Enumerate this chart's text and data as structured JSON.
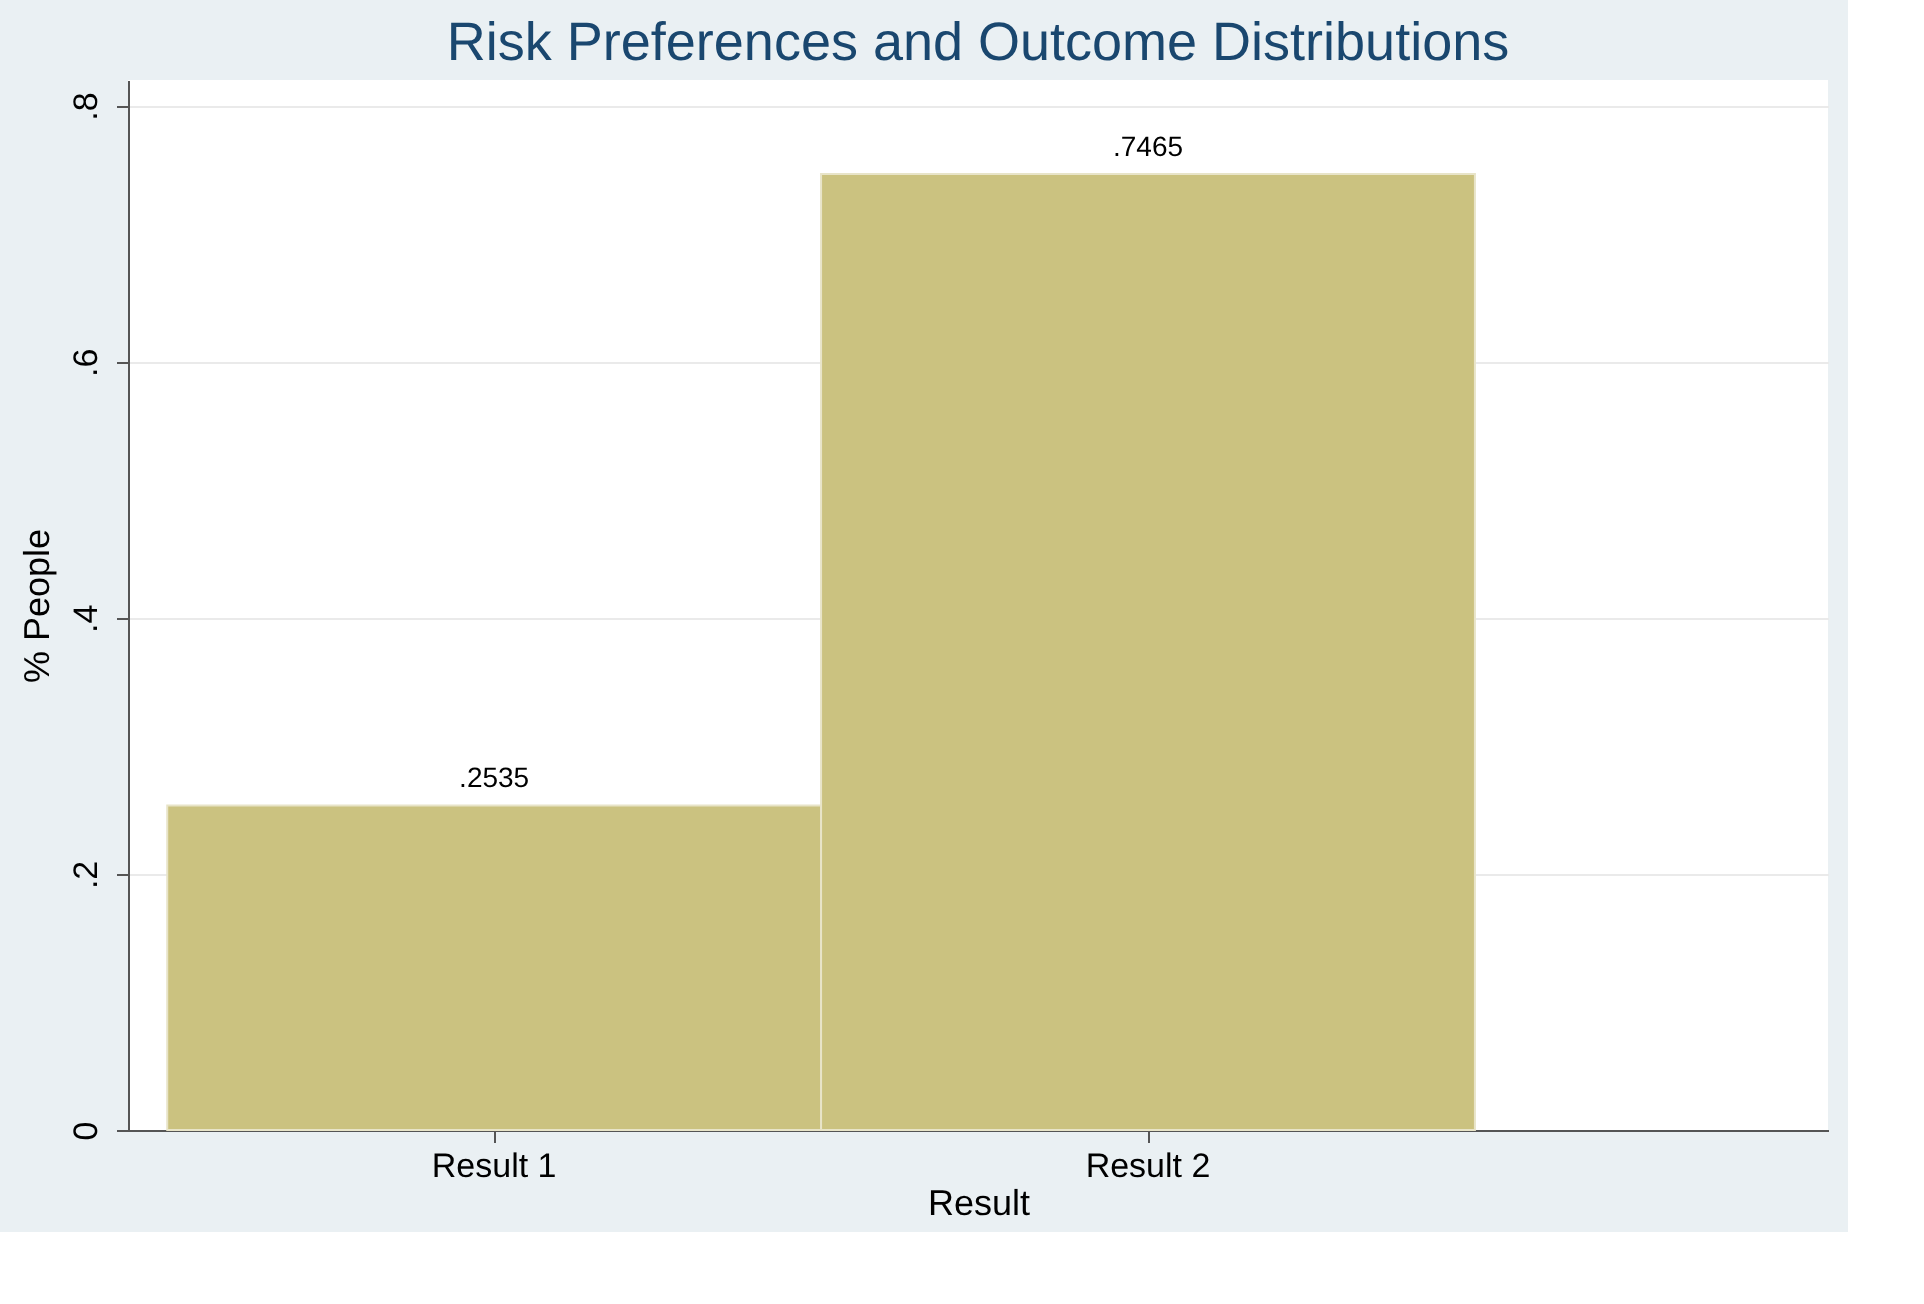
{
  "chart_data": {
    "type": "bar",
    "title": "Risk Preferences and Outcome Distributions",
    "xlabel": "Result",
    "ylabel": "% People",
    "categories": [
      "Result 1",
      "Result 2"
    ],
    "values": [
      0.2535,
      0.7465
    ],
    "value_labels": [
      ".2535",
      ".7465"
    ],
    "color": "#cbc280",
    "ylim": [
      0,
      0.82
    ],
    "yticks": [
      0,
      {
        "value": 0.2,
        "label": ".2"
      },
      {
        "value": 0.4,
        "label": ".4"
      },
      {
        "value": 0.6,
        "label": ".6"
      },
      {
        "value": 0.8,
        "label": ".8"
      }
    ],
    "grid": "y"
  }
}
